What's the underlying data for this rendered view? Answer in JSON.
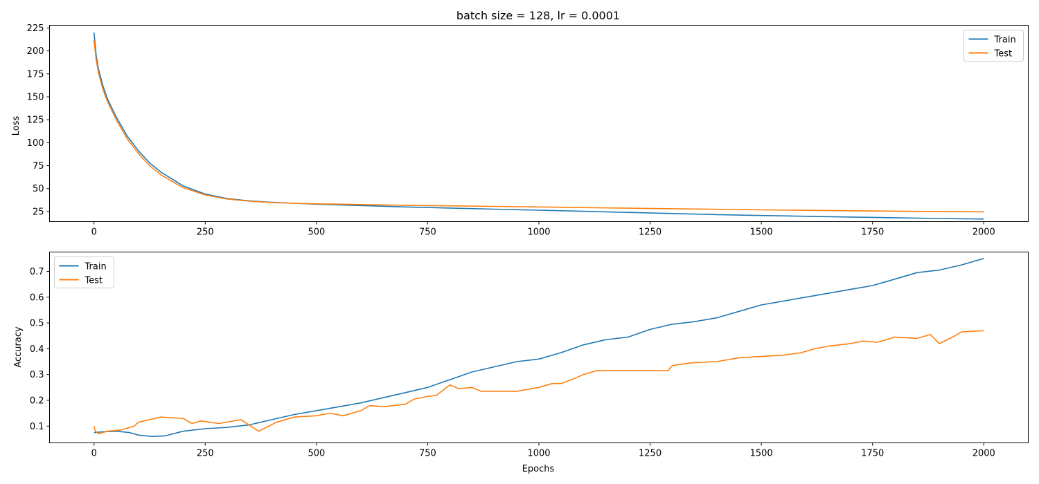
{
  "chart_data": [
    {
      "type": "line",
      "title": "batch size = 128, lr = 0.0001",
      "xlabel": "",
      "ylabel": "Loss",
      "xlim": [
        -100,
        2100
      ],
      "ylim": [
        14,
        228
      ],
      "xticks": [
        0,
        250,
        500,
        750,
        1000,
        1250,
        1500,
        1750,
        2000
      ],
      "yticks": [
        25,
        50,
        75,
        100,
        125,
        150,
        175,
        200,
        225
      ],
      "grid": false,
      "legend": "top-right",
      "series": [
        {
          "name": "Train",
          "color": "#1f77b4",
          "x": [
            0,
            5,
            10,
            20,
            30,
            50,
            75,
            100,
            125,
            150,
            200,
            250,
            300,
            350,
            400,
            450,
            500,
            600,
            700,
            800,
            900,
            1000,
            1100,
            1200,
            1300,
            1400,
            1500,
            1600,
            1700,
            1800,
            1900,
            2000
          ],
          "y": [
            220,
            195,
            180,
            162,
            148,
            128,
            107,
            91,
            78,
            68,
            53,
            44,
            39,
            36.5,
            35,
            34,
            33,
            31.5,
            30,
            28.8,
            27.6,
            26.4,
            25.2,
            24,
            22.8,
            21.6,
            20.6,
            19.8,
            19,
            18.2,
            17.4,
            16.8
          ]
        },
        {
          "name": "Test",
          "color": "#ff7f0e",
          "x": [
            0,
            5,
            10,
            20,
            30,
            50,
            75,
            100,
            125,
            150,
            200,
            250,
            300,
            350,
            400,
            450,
            500,
            600,
            700,
            800,
            900,
            1000,
            1100,
            1200,
            1300,
            1400,
            1500,
            1600,
            1700,
            1800,
            1900,
            2000
          ],
          "y": [
            212,
            190,
            176,
            158,
            145,
            125,
            104,
            88,
            75,
            65,
            51,
            43,
            38.5,
            36.2,
            34.8,
            34,
            33.4,
            32.6,
            31.8,
            31.2,
            30.6,
            30,
            29.3,
            28.6,
            28,
            27.4,
            26.8,
            26.3,
            25.8,
            25.4,
            25,
            24.6
          ]
        }
      ]
    },
    {
      "type": "line",
      "title": "",
      "xlabel": "Epochs",
      "ylabel": "Accuracy",
      "xlim": [
        -100,
        2100
      ],
      "ylim": [
        0.035,
        0.775
      ],
      "xticks": [
        0,
        250,
        500,
        750,
        1000,
        1250,
        1500,
        1750,
        2000
      ],
      "yticks": [
        0.1,
        0.2,
        0.3,
        0.4,
        0.5,
        0.6,
        0.7
      ],
      "grid": false,
      "legend": "top-left",
      "series": [
        {
          "name": "Train",
          "color": "#1f77b4",
          "x": [
            0,
            20,
            50,
            80,
            100,
            130,
            160,
            200,
            250,
            300,
            350,
            400,
            450,
            500,
            550,
            600,
            650,
            700,
            750,
            800,
            850,
            900,
            950,
            1000,
            1050,
            1100,
            1150,
            1200,
            1250,
            1300,
            1350,
            1400,
            1450,
            1500,
            1550,
            1600,
            1650,
            1700,
            1750,
            1800,
            1850,
            1900,
            1950,
            2000
          ],
          "y": [
            0.075,
            0.078,
            0.08,
            0.075,
            0.065,
            0.06,
            0.062,
            0.08,
            0.09,
            0.095,
            0.105,
            0.125,
            0.145,
            0.16,
            0.175,
            0.19,
            0.21,
            0.23,
            0.25,
            0.28,
            0.31,
            0.33,
            0.35,
            0.36,
            0.385,
            0.415,
            0.435,
            0.445,
            0.475,
            0.495,
            0.505,
            0.52,
            0.545,
            0.57,
            0.585,
            0.6,
            0.615,
            0.63,
            0.645,
            0.67,
            0.695,
            0.705,
            0.725,
            0.75
          ]
        },
        {
          "name": "Test",
          "color": "#ff7f0e",
          "x": [
            0,
            3,
            10,
            30,
            60,
            90,
            100,
            150,
            200,
            220,
            240,
            280,
            330,
            370,
            410,
            450,
            500,
            530,
            560,
            600,
            620,
            650,
            700,
            720,
            750,
            770,
            800,
            820,
            850,
            870,
            900,
            950,
            1000,
            1030,
            1050,
            1080,
            1100,
            1130,
            1200,
            1250,
            1290,
            1300,
            1340,
            1400,
            1450,
            1500,
            1550,
            1590,
            1620,
            1650,
            1700,
            1730,
            1760,
            1800,
            1850,
            1880,
            1900,
            1930,
            1950,
            2000
          ],
          "y": [
            0.1,
            0.08,
            0.07,
            0.08,
            0.085,
            0.1,
            0.115,
            0.135,
            0.13,
            0.11,
            0.12,
            0.11,
            0.125,
            0.08,
            0.115,
            0.135,
            0.14,
            0.15,
            0.14,
            0.16,
            0.18,
            0.175,
            0.185,
            0.205,
            0.215,
            0.22,
            0.26,
            0.245,
            0.25,
            0.235,
            0.235,
            0.235,
            0.25,
            0.265,
            0.265,
            0.285,
            0.3,
            0.315,
            0.315,
            0.315,
            0.315,
            0.335,
            0.345,
            0.35,
            0.365,
            0.37,
            0.375,
            0.385,
            0.4,
            0.41,
            0.42,
            0.43,
            0.425,
            0.445,
            0.44,
            0.455,
            0.42,
            0.445,
            0.465,
            0.47
          ]
        }
      ]
    }
  ]
}
